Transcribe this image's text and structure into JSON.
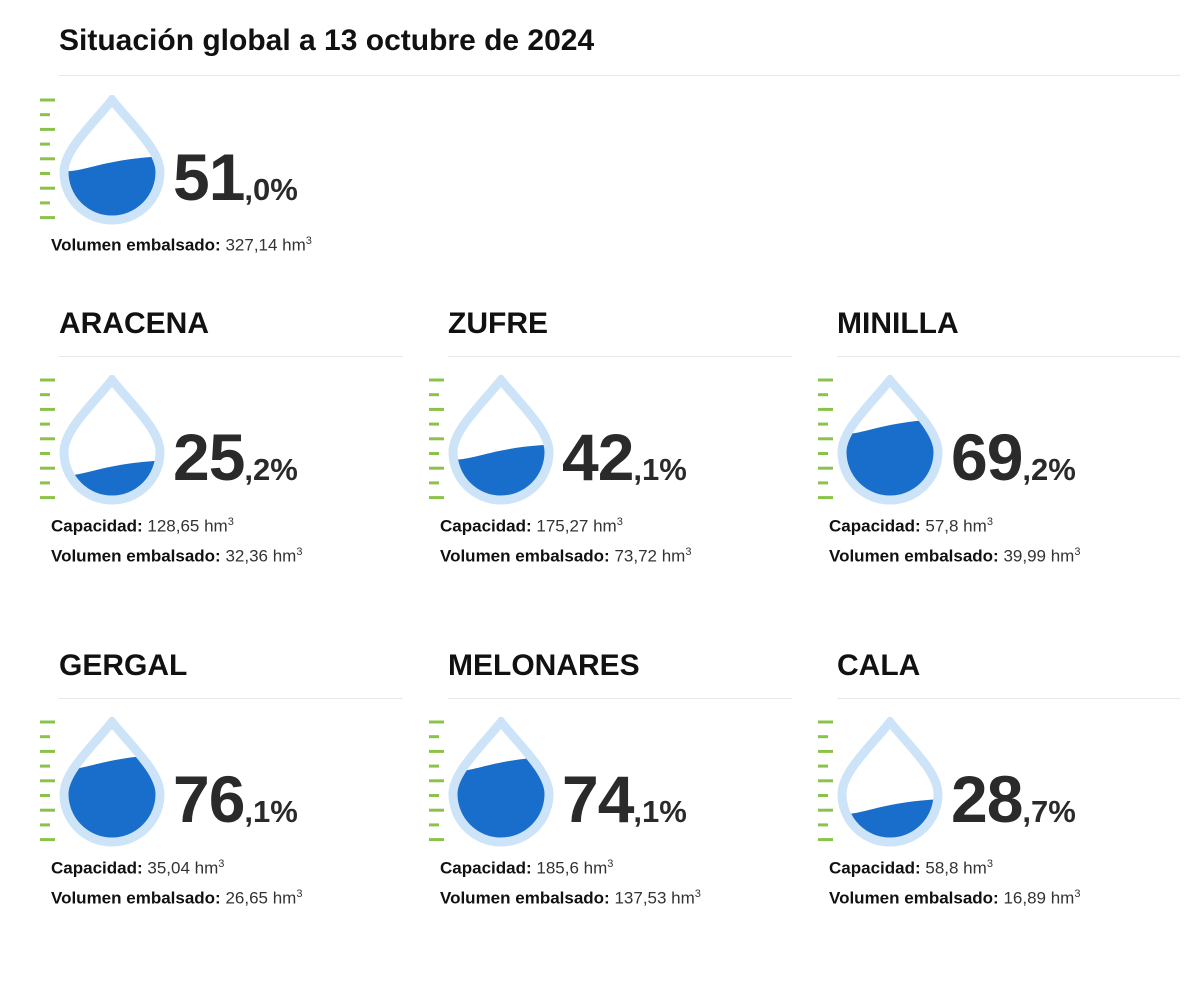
{
  "header": {
    "title": "Situación global a 13 octubre de 2024"
  },
  "global": {
    "value": 51.0,
    "value_label": {
      "integer": "51",
      "decimal": ",0%"
    },
    "volume": {
      "label": "Volumen embalsado:",
      "value": "327,14 hm",
      "sup": "3"
    }
  },
  "reservoirs": [
    {
      "name": "ARACENA",
      "value": 25.2,
      "value_label": {
        "integer": "25",
        "decimal": ",2%"
      },
      "capacity": {
        "label": "Capacidad:",
        "value": "128,65 hm",
        "sup": "3"
      },
      "volume": {
        "label": "Volumen embalsado:",
        "value": "32,36 hm",
        "sup": "3"
      }
    },
    {
      "name": "ZUFRE",
      "value": 42.1,
      "value_label": {
        "integer": "42",
        "decimal": ",1%"
      },
      "capacity": {
        "label": "Capacidad:",
        "value": "175,27 hm",
        "sup": "3"
      },
      "volume": {
        "label": "Volumen embalsado:",
        "value": "73,72 hm",
        "sup": "3"
      }
    },
    {
      "name": "MINILLA",
      "value": 69.2,
      "value_label": {
        "integer": "69",
        "decimal": ",2%"
      },
      "capacity": {
        "label": "Capacidad:",
        "value": "57,8 hm",
        "sup": "3"
      },
      "volume": {
        "label": "Volumen embalsado:",
        "value": "39,99 hm",
        "sup": "3"
      }
    },
    {
      "name": "GERGAL",
      "value": 76.1,
      "value_label": {
        "integer": "76",
        "decimal": ",1%"
      },
      "capacity": {
        "label": "Capacidad:",
        "value": "35,04 hm",
        "sup": "3"
      },
      "volume": {
        "label": "Volumen embalsado:",
        "value": "26,65 hm",
        "sup": "3"
      }
    },
    {
      "name": "MELONARES",
      "value": 74.1,
      "value_label": {
        "integer": "74",
        "decimal": ",1%"
      },
      "capacity": {
        "label": "Capacidad:",
        "value": "185,6 hm",
        "sup": "3"
      },
      "volume": {
        "label": "Volumen embalsado:",
        "value": "137,53 hm",
        "sup": "3"
      }
    },
    {
      "name": "CALA",
      "value": 28.7,
      "value_label": {
        "integer": "28",
        "decimal": ",7%"
      },
      "capacity": {
        "label": "Capacidad:",
        "value": "58,8 hm",
        "sup": "3"
      },
      "volume": {
        "label": "Volumen embalsado:",
        "value": "16,89 hm",
        "sup": "3"
      }
    }
  ]
}
